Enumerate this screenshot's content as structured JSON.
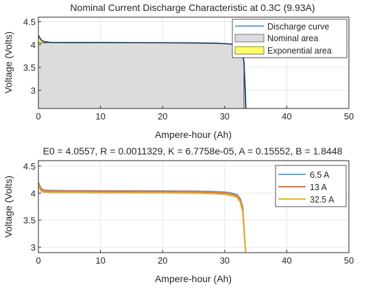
{
  "chart_data": [
    {
      "type": "area",
      "title": "Nominal Current Discharge Characteristic at 0.3C (9.93A)",
      "xlabel": "Ampere-hour (Ah)",
      "ylabel": "Voltage (Volts)",
      "xlim": [
        0,
        50
      ],
      "ylim": [
        2.6,
        4.6
      ],
      "xticks": [
        "0",
        "10",
        "20",
        "30",
        "40",
        "50"
      ],
      "yticks": [
        "3",
        "3.5",
        "4",
        "4.5"
      ],
      "grid": true,
      "legend_position": "top-right",
      "series": [
        {
          "name": "Discharge curve",
          "kind": "line",
          "color": "#5fa7de",
          "x": [
            0,
            0.2,
            0.5,
            1.0,
            2.0,
            5.0,
            10,
            15,
            20,
            25,
            28,
            30,
            31,
            32,
            32.5,
            32.9,
            33.1,
            33.3,
            33.4
          ],
          "y": [
            4.2,
            4.15,
            4.09,
            4.06,
            4.045,
            4.043,
            4.042,
            4.04,
            4.038,
            4.035,
            4.03,
            4.02,
            4.01,
            3.99,
            3.95,
            3.85,
            3.6,
            3.0,
            2.6
          ]
        },
        {
          "name": "Nominal area",
          "kind": "area",
          "color": "#dcdcdc",
          "x": [
            0,
            0.5,
            1.0,
            2.0,
            5.0,
            10,
            15,
            20,
            25,
            28,
            30,
            31,
            32,
            32.5,
            32.9,
            33.1
          ],
          "y": [
            4.04,
            4.04,
            4.042,
            4.045,
            4.043,
            4.042,
            4.04,
            4.038,
            4.035,
            4.03,
            4.02,
            4.01,
            3.99,
            3.95,
            3.85,
            3.6
          ]
        },
        {
          "name": "Exponential area",
          "kind": "area",
          "color": "#ffff66",
          "x": [
            0,
            0.2,
            0.5,
            1.0,
            1.5
          ],
          "y": [
            4.2,
            4.15,
            4.09,
            4.06,
            4.05
          ],
          "base": 4.04
        }
      ]
    },
    {
      "type": "line",
      "title": "E0 = 4.0557, R = 0.0011329, K = 6.7758e-05, A = 0.15552, B = 1.8448",
      "xlabel": "Ampere-hour (Ah)",
      "ylabel": "Voltage (Volts)",
      "xlim": [
        0,
        50
      ],
      "ylim": [
        2.9,
        4.6
      ],
      "xticks": [
        "0",
        "10",
        "20",
        "30",
        "40",
        "50"
      ],
      "yticks": [
        "3",
        "3.5",
        "4",
        "4.5"
      ],
      "grid": true,
      "legend_position": "top-right",
      "series": [
        {
          "name": "6.5 A",
          "color": "#5fa7de",
          "x": [
            0,
            0.2,
            0.5,
            1.0,
            2.0,
            5.0,
            10,
            15,
            20,
            25,
            28,
            30,
            31,
            32,
            32.5,
            32.9,
            33.1,
            33.3,
            33.4
          ],
          "y": [
            4.2,
            4.14,
            4.08,
            4.055,
            4.05,
            4.045,
            4.044,
            4.042,
            4.04,
            4.037,
            4.03,
            4.02,
            4.005,
            3.97,
            3.9,
            3.75,
            3.4,
            3.0,
            2.9
          ]
        },
        {
          "name": "13 A",
          "color": "#e8703a",
          "x": [
            0,
            0.2,
            0.5,
            1.0,
            2.0,
            5.0,
            10,
            15,
            20,
            25,
            28,
            30,
            31,
            32,
            32.5,
            32.9,
            33.1,
            33.3,
            33.4
          ],
          "y": [
            4.18,
            4.12,
            4.06,
            4.04,
            4.035,
            4.032,
            4.03,
            4.028,
            4.026,
            4.022,
            4.015,
            4.0,
            3.985,
            3.95,
            3.87,
            3.7,
            3.35,
            3.0,
            2.9
          ]
        },
        {
          "name": "32.5 A",
          "color": "#e6b32a",
          "x": [
            0,
            0.2,
            0.5,
            1.0,
            2.0,
            5.0,
            10,
            15,
            20,
            25,
            28,
            30,
            31,
            32,
            32.5,
            32.9,
            33.1,
            33.3,
            33.4
          ],
          "y": [
            4.15,
            4.08,
            4.03,
            4.015,
            4.01,
            4.008,
            4.006,
            4.004,
            4.002,
            3.998,
            3.99,
            3.975,
            3.955,
            3.92,
            3.83,
            3.65,
            3.3,
            3.0,
            2.9
          ]
        }
      ]
    }
  ]
}
